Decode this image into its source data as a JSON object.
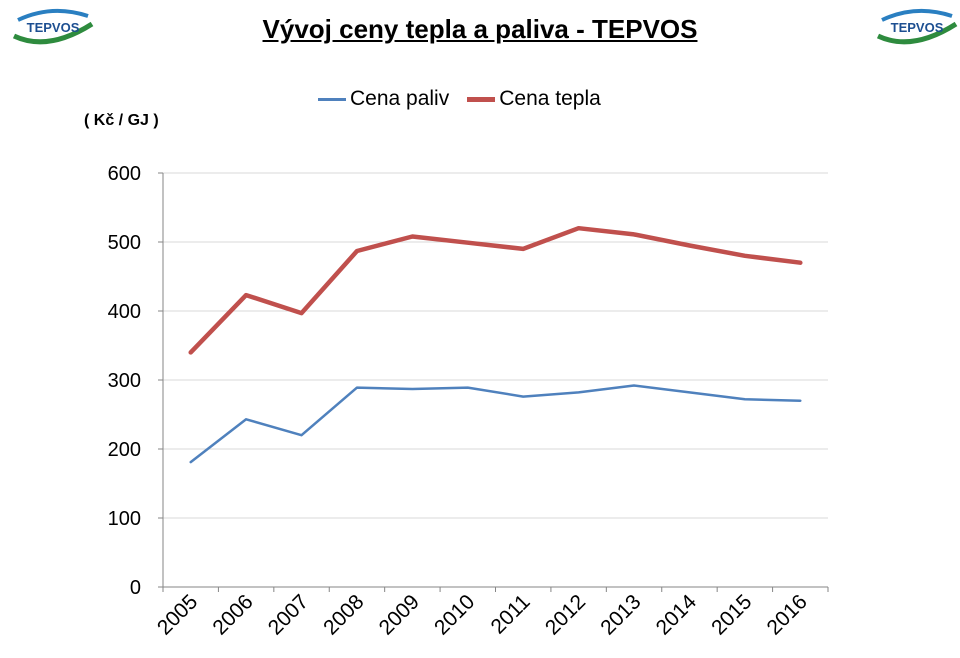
{
  "header": {
    "title": "Vývoj ceny tepla a paliva - TEPVOS",
    "logo_text": "TEPVOS"
  },
  "chart_data": {
    "type": "line",
    "title": "Vývoj ceny tepla a paliva - TEPVOS",
    "ylabel": "( Kč / GJ )",
    "xlabel": "",
    "categories": [
      "2005",
      "2006",
      "2007",
      "2008",
      "2009",
      "2010",
      "2011",
      "2012",
      "2013",
      "2014",
      "2015",
      "2016"
    ],
    "series": [
      {
        "name": "Cena paliv",
        "color": "#4f81bd",
        "values": [
          181,
          243,
          220,
          289,
          287,
          289,
          276,
          282,
          292,
          282,
          272,
          270
        ]
      },
      {
        "name": "Cena tepla",
        "color": "#c0504d",
        "values": [
          340,
          423,
          397,
          487,
          508,
          499,
          490,
          520,
          511,
          495,
          480,
          470
        ]
      }
    ],
    "ylim": [
      0,
      600
    ],
    "yticks": [
      0,
      100,
      200,
      300,
      400,
      500,
      600
    ],
    "grid": true,
    "legend": "top"
  }
}
